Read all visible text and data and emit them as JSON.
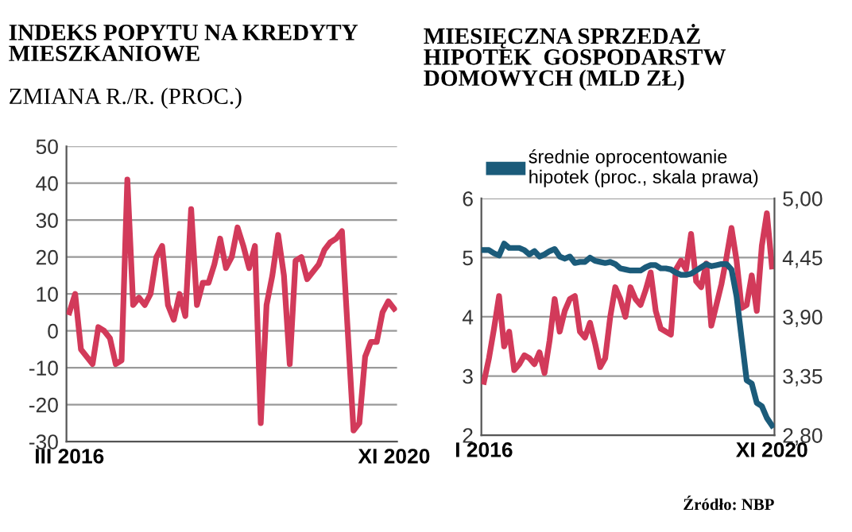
{
  "chart_data": [
    {
      "type": "line",
      "title": "INDEKS POPYTU NA KREDYTY\nMIESZKANIOWE",
      "subtitle": "ZMIANA R./R. (PROC.)",
      "categories": [
        "III 2016",
        null,
        null,
        null,
        null,
        null,
        null,
        null,
        null,
        null,
        null,
        null,
        null,
        null,
        null,
        null,
        null,
        null,
        null,
        null,
        null,
        null,
        null,
        null,
        null,
        null,
        null,
        null,
        null,
        null,
        null,
        null,
        null,
        null,
        null,
        null,
        null,
        null,
        null,
        null,
        null,
        null,
        null,
        null,
        null,
        null,
        null,
        null,
        null,
        null,
        null,
        null,
        null,
        null,
        null,
        null,
        "XI 2020"
      ],
      "series": [
        {
          "color": "#d23a5a",
          "values": [
            5,
            10,
            -5,
            -7,
            -9,
            1,
            0,
            -2,
            -9,
            -8,
            41,
            7,
            9,
            7,
            10,
            20,
            23,
            7,
            3,
            10,
            4,
            33,
            7,
            13,
            13,
            18,
            25,
            17,
            20,
            28,
            23,
            17,
            23,
            -25,
            7,
            15,
            26,
            15,
            -9,
            19,
            20,
            14,
            16,
            18,
            22,
            24,
            25,
            27,
            0,
            -27,
            -25,
            -7,
            -3,
            -3,
            5,
            8,
            6
          ]
        }
      ],
      "ylim": [
        -30,
        50
      ],
      "yticks": [
        -30,
        -20,
        -10,
        0,
        10,
        20,
        30,
        40,
        50
      ],
      "grid": "y",
      "legend": false
    },
    {
      "type": "line",
      "title": "MIESIĘCZNA SPRZEDAŻ\nHIPOTEK  GOSPODARSTW\nDOMOWYCH (MLD ZŁ)",
      "categories": [
        "I 2016",
        null,
        null,
        null,
        null,
        null,
        null,
        null,
        null,
        null,
        null,
        null,
        null,
        null,
        null,
        null,
        null,
        null,
        null,
        null,
        null,
        null,
        null,
        null,
        null,
        null,
        null,
        null,
        null,
        null,
        null,
        null,
        null,
        null,
        null,
        null,
        null,
        null,
        null,
        null,
        null,
        null,
        null,
        null,
        null,
        null,
        null,
        null,
        null,
        null,
        null,
        null,
        null,
        null,
        null,
        null,
        null,
        "XI 2020"
      ],
      "series": [
        {
          "color": "#d23a5a",
          "values": [
            2.9,
            3.3,
            3.8,
            4.35,
            3.5,
            3.75,
            3.1,
            3.2,
            3.35,
            3.3,
            3.2,
            3.4,
            3.05,
            3.6,
            4.3,
            3.75,
            4.1,
            4.3,
            4.35,
            3.75,
            3.65,
            3.9,
            3.55,
            3.15,
            3.3,
            4.0,
            4.5,
            4.3,
            4.0,
            4.5,
            4.3,
            4.2,
            4.45,
            4.75,
            4.1,
            3.8,
            3.75,
            3.7,
            4.8,
            4.95,
            4.8,
            5.4,
            4.6,
            4.5,
            4.9,
            3.85,
            4.2,
            4.55,
            5.0,
            5.5,
            4.95,
            4.15,
            4.2,
            4.7,
            4.1,
            5.2,
            5.75,
            4.85
          ]
        },
        {
          "name": "średnie oprocentowanie\nhipotek (proc., skala prawa)",
          "color": "#1b5b7a",
          "axis": "y2",
          "values": [
            4.52,
            4.52,
            4.49,
            4.47,
            4.58,
            4.54,
            4.54,
            4.54,
            4.52,
            4.48,
            4.51,
            4.46,
            4.48,
            4.51,
            4.53,
            4.46,
            4.44,
            4.46,
            4.4,
            4.41,
            4.41,
            4.45,
            4.42,
            4.41,
            4.4,
            4.41,
            4.39,
            4.35,
            4.34,
            4.33,
            4.33,
            4.33,
            4.36,
            4.38,
            4.38,
            4.35,
            4.35,
            4.34,
            4.31,
            4.29,
            4.29,
            4.3,
            4.33,
            4.36,
            4.39,
            4.37,
            4.38,
            4.39,
            4.39,
            4.34,
            4.09,
            3.7,
            3.31,
            3.28,
            3.1,
            3.07,
            2.96,
            2.89
          ]
        }
      ],
      "ylim": [
        2,
        6
      ],
      "yticks": [
        2,
        3,
        4,
        5,
        6
      ],
      "y2lim": [
        2.8,
        5.0
      ],
      "y2ticks": [
        {
          "value": 2.8,
          "label": "2,80"
        },
        {
          "value": 3.35,
          "label": "3,35"
        },
        {
          "value": 3.9,
          "label": "3,90"
        },
        {
          "value": 4.45,
          "label": "4,45"
        },
        {
          "value": 5.0,
          "label": "5,00"
        }
      ],
      "grid": "y",
      "legend": "top",
      "annotations": [
        "Źródło: NBP"
      ]
    }
  ]
}
